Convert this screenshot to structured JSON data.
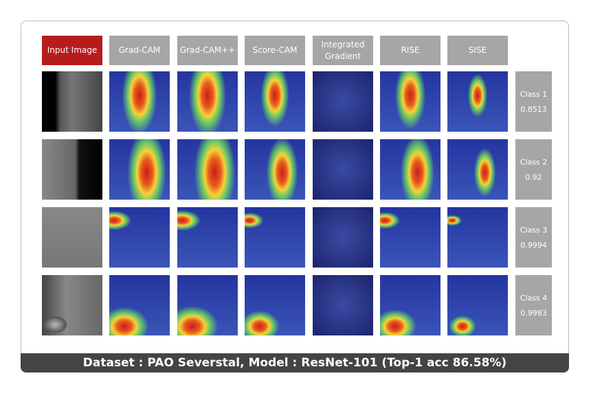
{
  "headers": [
    "Input Image",
    "Grad-CAM",
    "Grad-CAM++",
    "Score-CAM",
    "Integrated Gradient",
    "RISE",
    "SISE"
  ],
  "rows": [
    {
      "class": "Class 1",
      "score": 0.8513
    },
    {
      "class": "Class 2",
      "score": 0.92
    },
    {
      "class": "Class 3",
      "score": 0.9994
    },
    {
      "class": "Class 4",
      "score": 0.9983
    }
  ],
  "caption": "Dataset : PAO Severstal, Model : ResNet-101 (Top-1 acc 86.58%)"
}
